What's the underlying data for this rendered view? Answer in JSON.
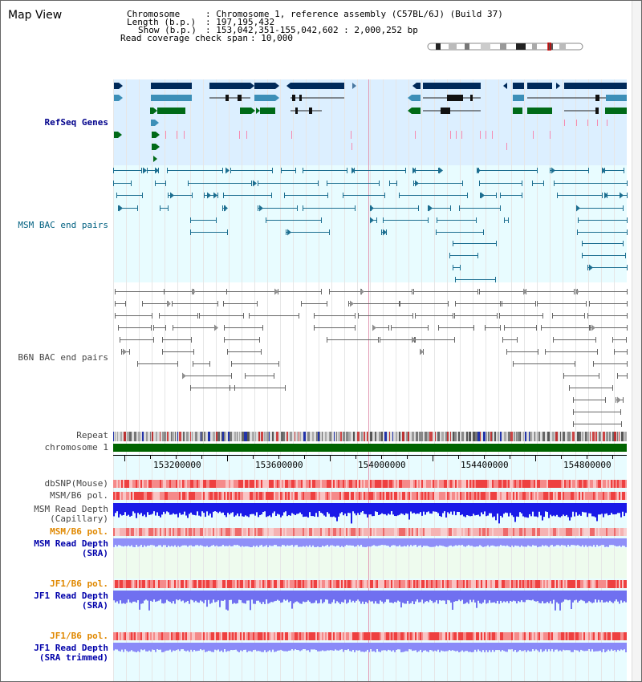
{
  "title": "Map View",
  "info": {
    "chromosome_label": "Chromosome",
    "chromosome_value": ": Chromosome 1, reference assembly (C57BL/6J) (Build 37)",
    "length_label": "Length (b.p.)",
    "length_value": ": 197,195,432",
    "show_label": "Show (b.p.)",
    "show_value": ": 153,042,351-155,042,602 : 2,000,252 bp",
    "coverage_label": "Read coverage check span",
    "coverage_value": ": 10,000"
  },
  "tracks": {
    "refseq": "RefSeq Genes",
    "msm_bac": "MSM BAC end pairs",
    "b6n_bac": "B6N BAC end pairs",
    "repeat": "Repeat",
    "chromosome": "chromosome 1",
    "dbsnp": "dbSNP(Mouse)",
    "msm_b6_pol_1": "MSM/B6 pol.",
    "msm_read_depth_cap_1": "MSM Read Depth",
    "msm_read_depth_cap_2": "(Capillary)",
    "msm_b6_pol_2": "MSM/B6 pol.",
    "msm_read_depth_sra_1": "MSM Read Depth",
    "msm_read_depth_sra_2": "(SRA)",
    "jf1_b6_pol_1": "JF1/B6 pol.",
    "jf1_read_depth_sra_1": "JF1 Read Depth",
    "jf1_read_depth_sra_2": "(SRA)",
    "jf1_b6_pol_2": "JF1/B6 pol.",
    "jf1_read_depth_trim_1": "JF1 Read Depth",
    "jf1_read_depth_trim_2": "(SRA trimmed)"
  },
  "axis": {
    "ticks": [
      "153200000",
      "153600000",
      "154000000",
      "154400000",
      "154800000"
    ]
  },
  "colors": {
    "refseq_label": "#00008b",
    "msm_label": "#006080",
    "gray_label": "#444444",
    "orange_label": "#e08800",
    "blue_label": "#0000aa",
    "refseq_bg": "#dcefff",
    "msm_bg": "#e8fcff",
    "chromosome_bar": "#006400",
    "cursor": "#e29ab4"
  }
}
